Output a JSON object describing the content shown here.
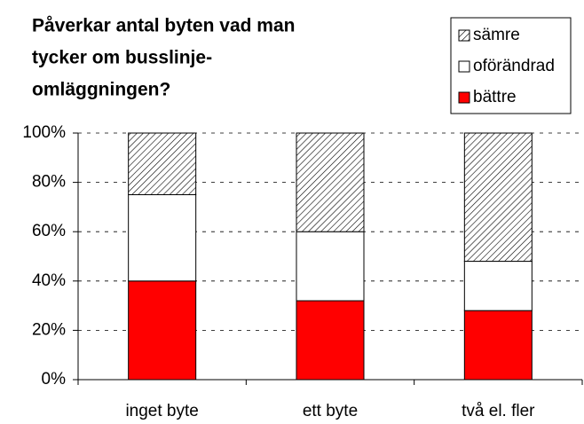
{
  "chart_data": {
    "type": "stacked_bar_percent",
    "title": [
      "Påverkar antal byten vad man",
      "tycker om busslinje-",
      "omläggningen?"
    ],
    "categories": [
      "inget byte",
      "ett byte",
      "två el. fler"
    ],
    "series": [
      {
        "name": "bättre",
        "color": "#ff0000",
        "values": [
          40,
          32,
          28
        ]
      },
      {
        "name": "oförändrad",
        "color": "#ffffff",
        "values": [
          35,
          28,
          20
        ]
      },
      {
        "name": "sämre",
        "color": "#ffffff",
        "hatch": true,
        "values": [
          25,
          40,
          52
        ]
      }
    ],
    "ylim": [
      0,
      100
    ],
    "yticks": [
      {
        "value": 0,
        "label": "0%"
      },
      {
        "value": 20,
        "label": "20%"
      },
      {
        "value": 40,
        "label": "40%"
      },
      {
        "value": 60,
        "label": "60%"
      },
      {
        "value": 80,
        "label": "80%"
      },
      {
        "value": 100,
        "label": "100%"
      }
    ],
    "grid": true,
    "legend": "top-right"
  }
}
